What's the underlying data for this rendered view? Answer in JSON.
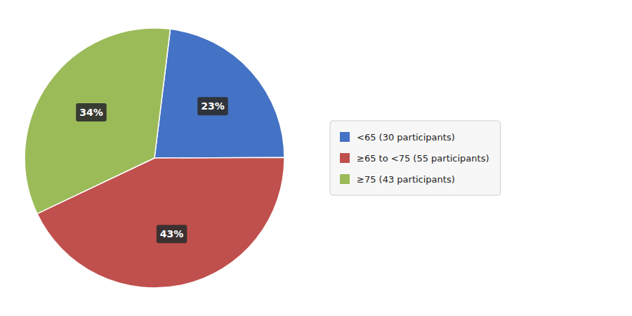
{
  "chart_data": {
    "type": "pie",
    "categories": [
      "<65 (30 participants)",
      "≥65 to <75 (55 participants)",
      "≥75 (43 participants)"
    ],
    "values": [
      23,
      43,
      34
    ],
    "value_labels": [
      "23%",
      "43%",
      "34%"
    ],
    "colors": [
      "#4472C4",
      "#C0504D",
      "#9BBB59"
    ],
    "data_labels": true,
    "legend": "right"
  }
}
